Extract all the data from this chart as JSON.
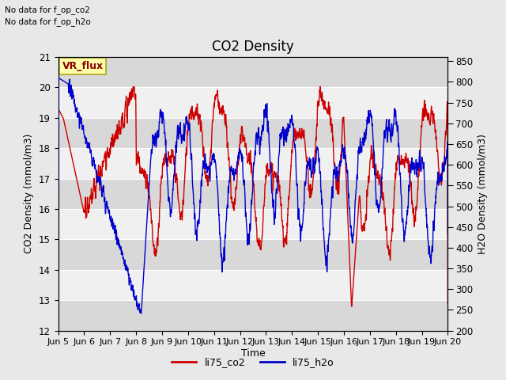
{
  "title": "CO2 Density",
  "xlabel": "Time",
  "ylabel_left": "CO2 Density (mmol/m3)",
  "ylabel_right": "H2O Density (mmol/m3)",
  "ylim_left": [
    12.0,
    21.0
  ],
  "ylim_right": [
    200,
    860
  ],
  "yticks_left": [
    12.0,
    13.0,
    14.0,
    15.0,
    16.0,
    17.0,
    18.0,
    19.0,
    20.0,
    21.0
  ],
  "yticks_right": [
    200,
    250,
    300,
    350,
    400,
    450,
    500,
    550,
    600,
    650,
    700,
    750,
    800,
    850
  ],
  "xtick_labels": [
    "Jun 5",
    "Jun 6",
    "Jun 7",
    "Jun 8",
    "Jun 9",
    "Jun 10",
    "Jun 11",
    "Jun 12",
    "Jun 13",
    "Jun 14",
    "Jun 15",
    "Jun 16",
    "Jun 17",
    "Jun 18",
    "Jun 19",
    "Jun 20"
  ],
  "text_no_data_1": "No data for f_op_co2",
  "text_no_data_2": "No data for f_op_h2o",
  "vr_flux_label": "VR_flux",
  "legend_labels": [
    "li75_co2",
    "li75_h2o"
  ],
  "legend_colors": [
    "#cc0000",
    "#0000cc"
  ],
  "color_co2": "#cc0000",
  "color_h2o": "#0000cc",
  "bg_color": "#e8e8e8",
  "plot_bg_color": "#f0f0f0",
  "stripe_color": "#d8d8d8",
  "title_fontsize": 12,
  "label_fontsize": 9,
  "tick_fontsize": 8.5
}
